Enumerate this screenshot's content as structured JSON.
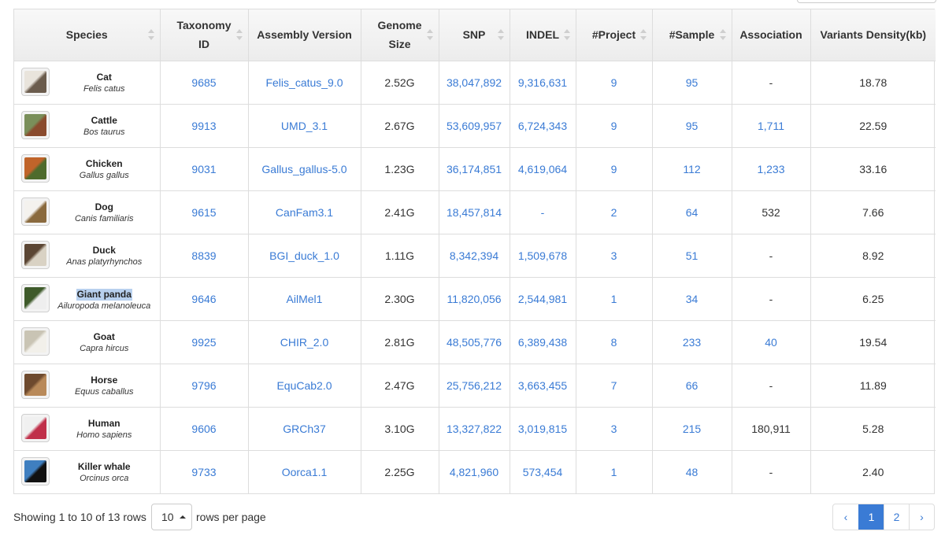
{
  "columns": [
    {
      "key": "species",
      "label": "Species",
      "sortable": true
    },
    {
      "key": "taxonomy",
      "label": "Taxonomy ID",
      "sortable": true
    },
    {
      "key": "assembly",
      "label": "Assembly Version",
      "sortable": false
    },
    {
      "key": "genome",
      "label": "Genome Size",
      "sortable": true
    },
    {
      "key": "snp",
      "label": "SNP",
      "sortable": true
    },
    {
      "key": "indel",
      "label": "INDEL",
      "sortable": true
    },
    {
      "key": "project",
      "label": "#Project",
      "sortable": true
    },
    {
      "key": "sample",
      "label": "#Sample",
      "sortable": true
    },
    {
      "key": "association",
      "label": "Association",
      "sortable": false
    },
    {
      "key": "density",
      "label": "Variants Density(kb)",
      "sortable": false
    }
  ],
  "rows": [
    {
      "common": "Cat",
      "latin": "Felis catus",
      "taxonomy": "9685",
      "assembly": "Felis_catus_9.0",
      "genome": "2.52G",
      "snp": "38,047,892",
      "indel": "9,316,631",
      "project": "9",
      "sample": "95",
      "association": "-",
      "density": "18.78",
      "icon": "cat-photo-icon",
      "thumb_colors": [
        "#e9e4dc",
        "#6b5c4d"
      ]
    },
    {
      "common": "Cattle",
      "latin": "Bos taurus",
      "taxonomy": "9913",
      "assembly": "UMD_3.1",
      "genome": "2.67G",
      "snp": "53,609,957",
      "indel": "6,724,343",
      "project": "9",
      "sample": "95",
      "association": "1,711",
      "density": "22.59",
      "icon": "cattle-photo-icon",
      "thumb_colors": [
        "#7a8f5a",
        "#8a4b2e"
      ]
    },
    {
      "common": "Chicken",
      "latin": "Gallus gallus",
      "taxonomy": "9031",
      "assembly": "Gallus_gallus-5.0",
      "genome": "1.23G",
      "snp": "36,174,851",
      "indel": "4,619,064",
      "project": "9",
      "sample": "112",
      "association": "1,233",
      "density": "33.16",
      "icon": "chicken-photo-icon",
      "thumb_colors": [
        "#c0642a",
        "#4e6b2c"
      ]
    },
    {
      "common": "Dog",
      "latin": "Canis familiaris",
      "taxonomy": "9615",
      "assembly": "CanFam3.1",
      "genome": "2.41G",
      "snp": "18,457,814",
      "indel": "-",
      "project": "2",
      "sample": "64",
      "association": "532",
      "density": "7.66",
      "icon": "dog-photo-icon",
      "thumb_colors": [
        "#f4f2ee",
        "#8a6a3e"
      ]
    },
    {
      "common": "Duck",
      "latin": "Anas platyrhynchos",
      "taxonomy": "8839",
      "assembly": "BGI_duck_1.0",
      "genome": "1.11G",
      "snp": "8,342,394",
      "indel": "1,509,678",
      "project": "3",
      "sample": "51",
      "association": "-",
      "density": "8.92",
      "icon": "duck-photo-icon",
      "thumb_colors": [
        "#5b4634",
        "#d9d2c4"
      ]
    },
    {
      "common": "Giant panda",
      "latin": "Ailuropoda melanoleuca",
      "taxonomy": "9646",
      "assembly": "AilMel1",
      "genome": "2.30G",
      "snp": "11,820,056",
      "indel": "2,544,981",
      "project": "1",
      "sample": "34",
      "association": "-",
      "density": "6.25",
      "icon": "panda-photo-icon",
      "thumb_colors": [
        "#3e5a2a",
        "#eeeeee"
      ],
      "highlight": true
    },
    {
      "common": "Goat",
      "latin": "Capra hircus",
      "taxonomy": "9925",
      "assembly": "CHIR_2.0",
      "genome": "2.81G",
      "snp": "48,505,776",
      "indel": "6,389,438",
      "project": "8",
      "sample": "233",
      "association": "40",
      "density": "19.54",
      "icon": "goat-photo-icon",
      "thumb_colors": [
        "#c9c4b4",
        "#f2f0ea"
      ]
    },
    {
      "common": "Horse",
      "latin": "Equus caballus",
      "taxonomy": "9796",
      "assembly": "EquCab2.0",
      "genome": "2.47G",
      "snp": "25,756,212",
      "indel": "3,663,455",
      "project": "7",
      "sample": "66",
      "association": "-",
      "density": "11.89",
      "icon": "horse-photo-icon",
      "thumb_colors": [
        "#6e4a2e",
        "#b98a5a"
      ]
    },
    {
      "common": "Human",
      "latin": "Homo sapiens",
      "taxonomy": "9606",
      "assembly": "GRCh37",
      "genome": "3.10G",
      "snp": "13,327,822",
      "indel": "3,019,815",
      "project": "3",
      "sample": "215",
      "association": "180,911",
      "density": "5.28",
      "icon": "human-photo-icon",
      "thumb_colors": [
        "#f0f0f0",
        "#c0304a"
      ]
    },
    {
      "common": "Killer whale",
      "latin": "Orcinus orca",
      "taxonomy": "9733",
      "assembly": "Oorca1.1",
      "genome": "2.25G",
      "snp": "4,821,960",
      "indel": "573,454",
      "project": "1",
      "sample": "48",
      "association": "-",
      "density": "2.40",
      "icon": "orca-photo-icon",
      "thumb_colors": [
        "#3f7fc0",
        "#111111"
      ]
    }
  ],
  "footer": {
    "showing": "Showing 1 to 10 of 13 rows",
    "page_size": "10",
    "rows_per_page": "rows per page"
  },
  "pagination": {
    "prev": "‹",
    "pages": [
      "1",
      "2"
    ],
    "active": "1",
    "next": "›"
  },
  "colors": {
    "link": "#3a7bd5",
    "active_page": "#3a7bd5",
    "highlight": "#b8d0ee"
  }
}
